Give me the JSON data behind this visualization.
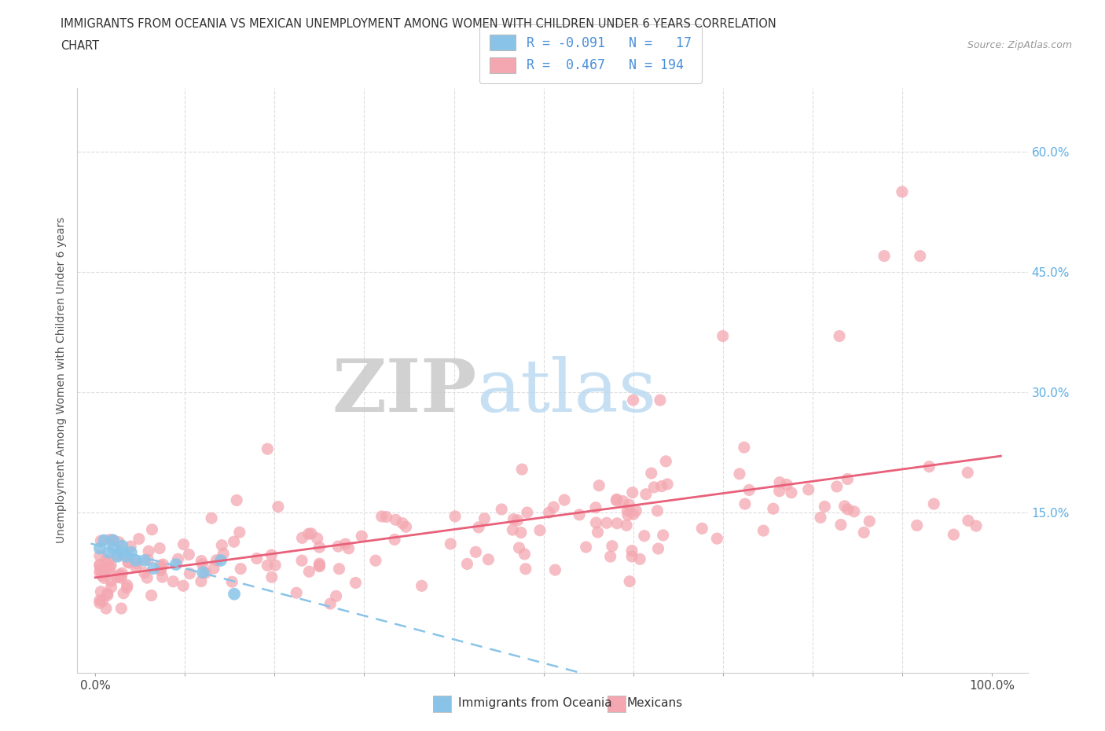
{
  "title_line1": "IMMIGRANTS FROM OCEANIA VS MEXICAN UNEMPLOYMENT AMONG WOMEN WITH CHILDREN UNDER 6 YEARS CORRELATION",
  "title_line2": "CHART",
  "source": "Source: ZipAtlas.com",
  "ylabel": "Unemployment Among Women with Children Under 6 years",
  "color_oceania": "#89C4E8",
  "color_mexicans": "#F4A7B0",
  "color_line_oceania": "#89C4E8",
  "color_line_mexicans": "#E8607A",
  "ytick_color": "#5DADE2",
  "grid_color": "#DDDDDD",
  "background": "#FFFFFF"
}
